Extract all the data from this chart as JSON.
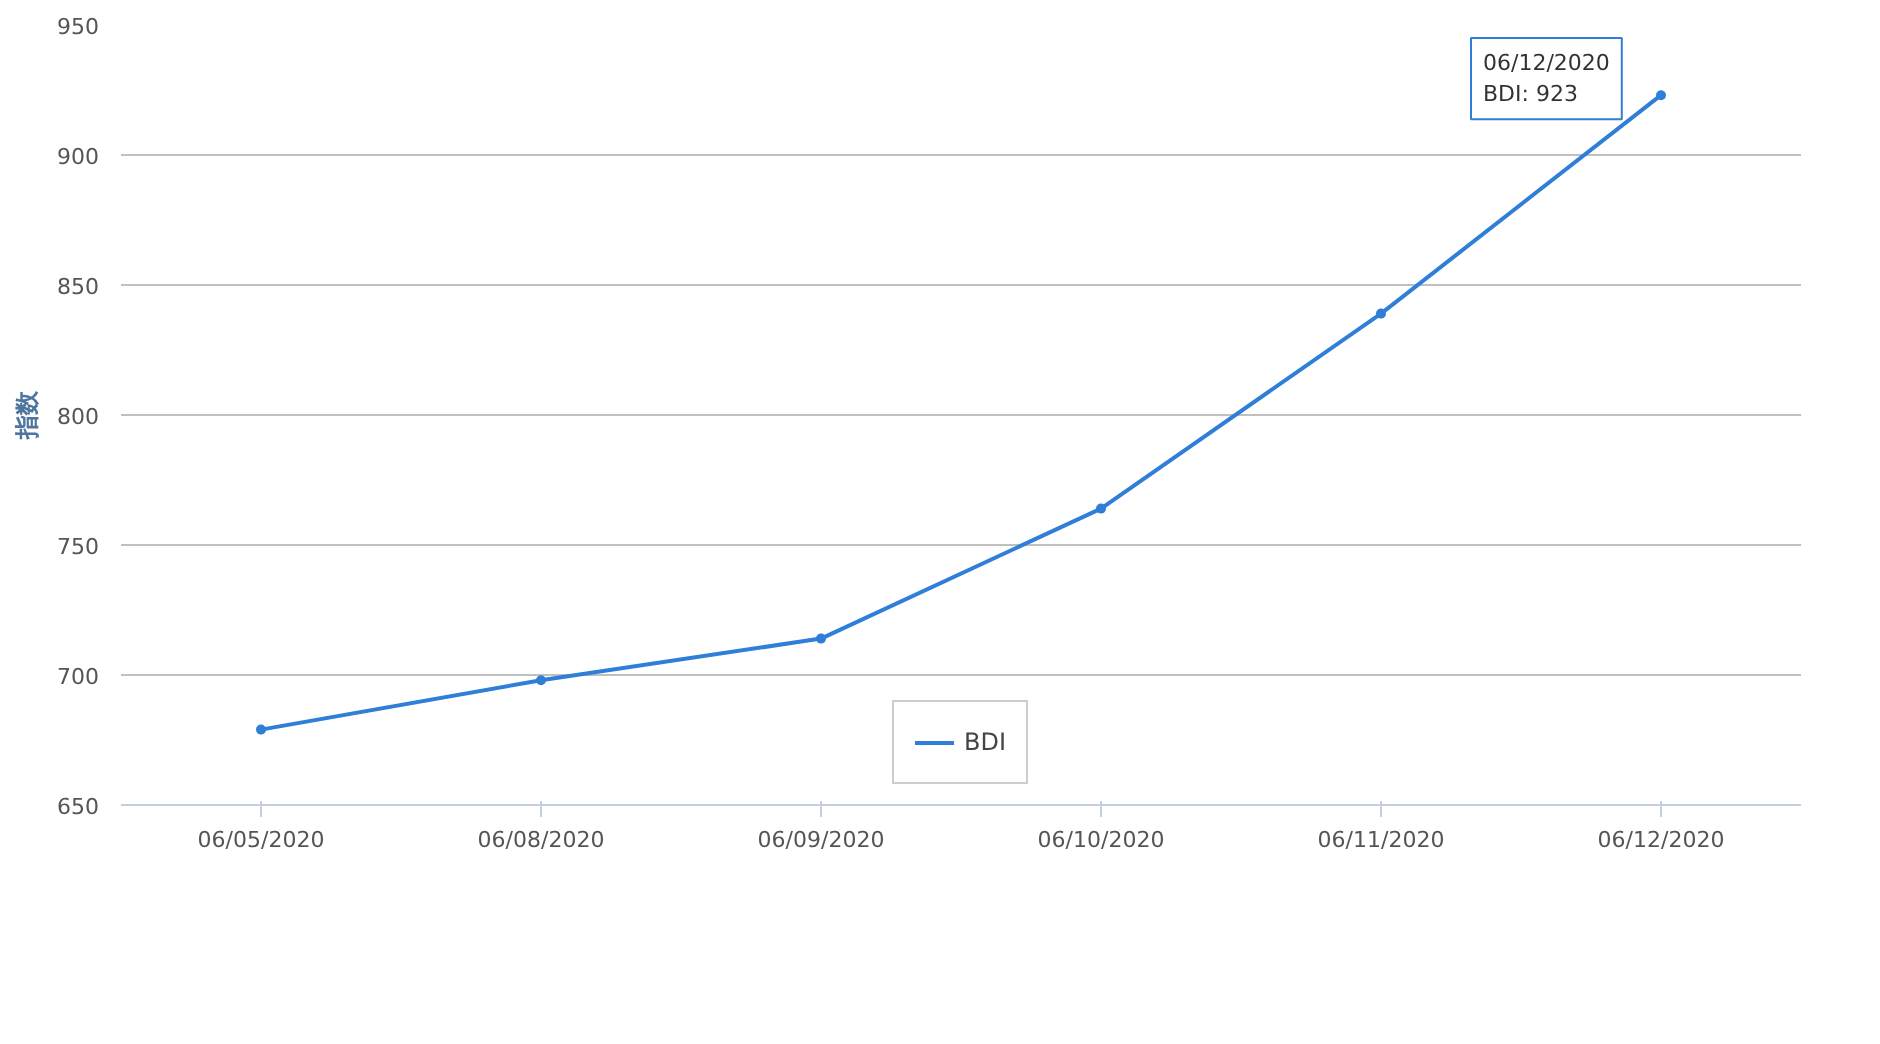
{
  "chart_data": {
    "type": "line",
    "ylabel": "指数",
    "categories": [
      "06/05/2020",
      "06/08/2020",
      "06/09/2020",
      "06/10/2020",
      "06/11/2020",
      "06/12/2020"
    ],
    "series": [
      {
        "name": "BDI",
        "color": "#2f7ed8",
        "values": [
          679,
          698,
          714,
          764,
          839,
          923
        ]
      }
    ],
    "ylim": [
      650,
      950
    ],
    "yticks": [
      650,
      700,
      750,
      800,
      850,
      900,
      950
    ],
    "grid": "y",
    "legend": "bottom",
    "marker": "circle",
    "line_style": "solid",
    "annotations": [
      {
        "text": "06/12/2020\nBDI: 923",
        "x": "06/12/2020",
        "y": 923
      }
    ]
  }
}
